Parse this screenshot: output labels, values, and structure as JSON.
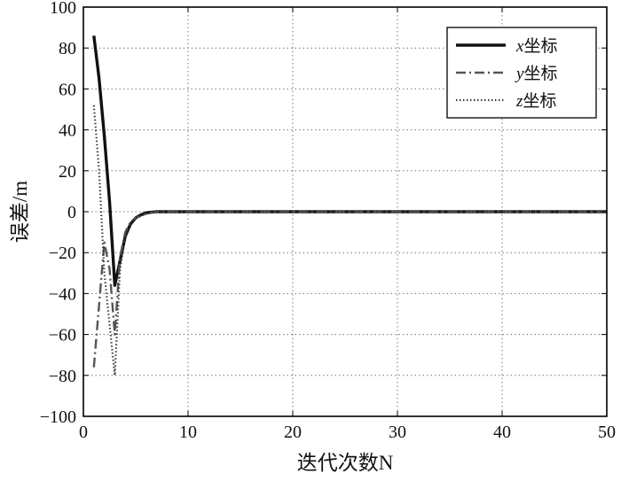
{
  "chart_data": {
    "type": "line",
    "xlabel": "迭代次数N",
    "ylabel": "误差/m",
    "xlim": [
      0,
      50
    ],
    "ylim": [
      -100,
      100
    ],
    "xticks": [
      0,
      10,
      20,
      30,
      40,
      50
    ],
    "yticks": [
      100,
      80,
      60,
      40,
      20,
      0,
      -20,
      -40,
      -60,
      -80,
      -100
    ],
    "xtick_labels": [
      "0",
      "10",
      "20",
      "30",
      "40",
      "50"
    ],
    "ytick_labels": [
      "100",
      "80",
      "60",
      "40",
      "20",
      "0",
      "−20",
      "−40",
      "−60",
      "−80",
      "−100"
    ],
    "grid": true,
    "grid_style": "dotted",
    "legend_position": "top-right",
    "series": [
      {
        "name": "x坐标",
        "var": "x",
        "suffix": "坐标",
        "style": "solid",
        "color": "#111111",
        "x": [
          1,
          1.5,
          2,
          2.5,
          3,
          3.5,
          4,
          4.5,
          5,
          5.5,
          6,
          7,
          8,
          10,
          20,
          30,
          40,
          50
        ],
        "y": [
          86,
          65,
          37,
          5,
          -36,
          -24,
          -12,
          -6,
          -3,
          -1.5,
          -0.5,
          0,
          0,
          0,
          0,
          0,
          0,
          0
        ]
      },
      {
        "name": "y坐标",
        "var": "y",
        "suffix": "坐标",
        "style": "dashdot",
        "color": "#555555",
        "x": [
          1,
          2,
          2.5,
          3,
          3.5,
          4,
          4.5,
          5,
          6,
          7,
          8,
          10,
          20,
          30,
          40,
          50
        ],
        "y": [
          -76,
          -15,
          -28,
          -60,
          -22,
          -10,
          -5,
          -3,
          -1,
          0,
          0,
          0,
          0,
          0,
          0,
          0
        ]
      },
      {
        "name": "z坐标",
        "var": "z",
        "suffix": "坐标",
        "style": "dotted",
        "color": "#333333",
        "x": [
          1,
          1.5,
          2,
          2.5,
          3,
          3.5,
          4,
          4.5,
          5,
          6,
          7,
          8,
          10,
          20,
          30,
          40,
          50
        ],
        "y": [
          52,
          20,
          -30,
          -55,
          -80,
          -28,
          -12,
          -6,
          -3,
          -1,
          0,
          0,
          0,
          0,
          0,
          0,
          0
        ]
      }
    ]
  }
}
